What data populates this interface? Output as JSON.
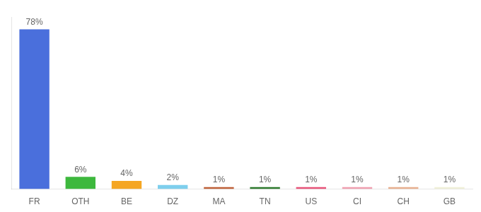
{
  "chart_data": {
    "type": "bar",
    "categories": [
      "FR",
      "OTH",
      "BE",
      "DZ",
      "MA",
      "TN",
      "US",
      "CI",
      "CH",
      "GB"
    ],
    "values": [
      78,
      6,
      4,
      2,
      1,
      1,
      1,
      1,
      1,
      1
    ],
    "value_labels": [
      "78%",
      "6%",
      "4%",
      "2%",
      "1%",
      "1%",
      "1%",
      "1%",
      "1%",
      "1%"
    ],
    "colors": [
      "#4a6fdc",
      "#3db83d",
      "#f5a623",
      "#7ecfed",
      "#c0623a",
      "#2e7a2e",
      "#e8547a",
      "#f0a0b0",
      "#e8b090",
      "#f0f0d8"
    ],
    "ylim": [
      0,
      84
    ],
    "grid": false,
    "data_labels": true,
    "tick_labels": "x"
  }
}
